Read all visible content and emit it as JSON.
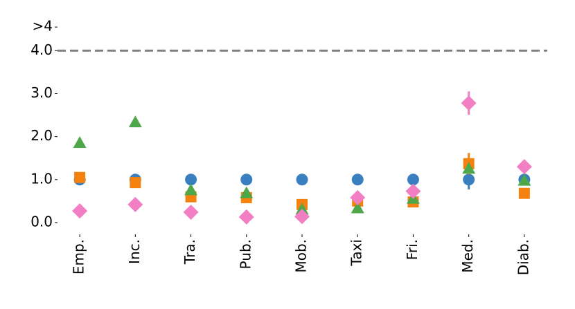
{
  "chart_data": {
    "type": "scatter",
    "categories": [
      "Emp.",
      "Inc.",
      "Tra.",
      "Pub.",
      "Mob.",
      "Taxi",
      "Fri.",
      "Med.",
      "Diab."
    ],
    "series": [
      {
        "color": "#3a7fc0",
        "marker": "circle",
        "values": [
          1.0,
          1.0,
          1.0,
          1.0,
          1.0,
          1.0,
          1.0,
          1.0,
          1.0
        ],
        "errors": [
          null,
          null,
          null,
          null,
          null,
          null,
          null,
          0.23,
          null
        ]
      },
      {
        "color": "#f5820f",
        "marker": "square",
        "values": [
          1.05,
          0.93,
          0.6,
          0.58,
          0.42,
          0.5,
          0.48,
          1.37,
          0.68
        ],
        "errors": [
          null,
          null,
          null,
          null,
          null,
          null,
          null,
          0.25,
          null
        ]
      },
      {
        "color": "#4ea849",
        "marker": "triangle",
        "values": [
          1.85,
          2.33,
          0.75,
          0.68,
          0.3,
          0.33,
          0.55,
          1.25,
          0.97
        ],
        "errors": [
          null,
          null,
          null,
          null,
          null,
          null,
          null,
          null,
          null
        ]
      },
      {
        "color": "#f27fc3",
        "marker": "diamond",
        "values": [
          0.27,
          0.42,
          0.24,
          0.13,
          0.14,
          0.58,
          0.73,
          2.78,
          1.3
        ],
        "errors": [
          null,
          null,
          null,
          null,
          null,
          null,
          null,
          0.27,
          null
        ]
      }
    ],
    "ylim": [
      -0.25,
      4.6
    ],
    "yticks": [
      {
        "value": 0,
        "label": "0.0"
      },
      {
        "value": 1,
        "label": "1.0"
      },
      {
        "value": 2,
        "label": "2.0"
      },
      {
        "value": 3,
        "label": "3.0"
      },
      {
        "value": 4,
        "label": "4.0"
      },
      {
        "value": 4.55,
        "label": ">4"
      }
    ],
    "reference_line": {
      "value": 4,
      "color": "#808080",
      "dashed": true
    }
  }
}
